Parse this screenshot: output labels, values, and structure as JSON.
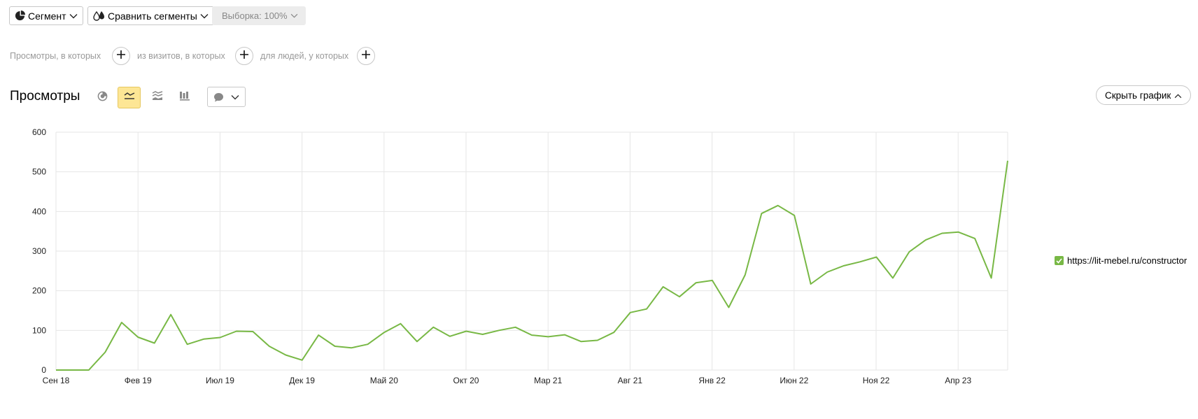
{
  "toolbar": {
    "segment_label": "Сегмент",
    "compare_label": "Сравнить сегменты",
    "sample_label": "Выборка: 100%"
  },
  "filters": {
    "views_label": "Просмотры, в которых",
    "visits_label": "из визитов, в которых",
    "people_label": "для людей, у которых"
  },
  "report": {
    "title": "Просмотры",
    "hide_chart_label": "Скрыть график",
    "active_view": "line",
    "views": [
      "pie-icon",
      "line-icon",
      "area-icon",
      "bar-icon"
    ]
  },
  "colors": {
    "series": "#78b845",
    "grid": "#e6e6e6",
    "highlight": "#fde695"
  },
  "chart_data": {
    "type": "line",
    "ylim": [
      0,
      600
    ],
    "y_ticks": [
      0,
      100,
      200,
      300,
      400,
      500,
      600
    ],
    "x_ticks": [
      "Сен 18",
      "Фев 19",
      "Июл 19",
      "Дек 19",
      "Май 20",
      "Окт 20",
      "Мар 21",
      "Авг 21",
      "Янв 22",
      "Июн 22",
      "Ноя 22",
      "Апр 23"
    ],
    "legend_position": "right",
    "series": [
      {
        "name": "https://lit-mebel.ru/constructor",
        "values": [
          0,
          0,
          0,
          45,
          120,
          83,
          68,
          140,
          65,
          78,
          82,
          98,
          97,
          60,
          38,
          25,
          88,
          60,
          56,
          65,
          95,
          117,
          72,
          108,
          85,
          98,
          90,
          100,
          108,
          88,
          84,
          89,
          72,
          75,
          95,
          145,
          154,
          210,
          185,
          220,
          226,
          158,
          240,
          395,
          415,
          390,
          217,
          247,
          263,
          273,
          285,
          232,
          298,
          328,
          345,
          348,
          332,
          232,
          528
        ]
      }
    ]
  }
}
